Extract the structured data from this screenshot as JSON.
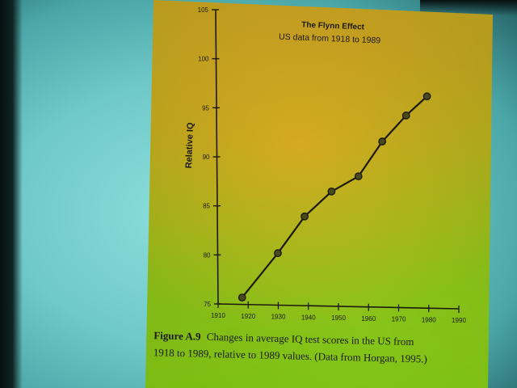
{
  "chart_data": {
    "type": "line",
    "title": "The Flynn Effect",
    "subtitle": "US data from 1918 to 1989",
    "xlabel": "",
    "ylabel": "Relative IQ",
    "xlim": [
      1910,
      1990
    ],
    "ylim": [
      75,
      105
    ],
    "x_ticks": [
      "1910",
      "1920",
      "1930",
      "1940",
      "1950",
      "1960",
      "1970",
      "1980",
      "1990"
    ],
    "y_ticks": [
      "75",
      "80",
      "85",
      "90",
      "95",
      "100",
      "105"
    ],
    "grid": false,
    "series": [
      {
        "x": [
          1918,
          1930,
          1939,
          1948,
          1957,
          1965,
          1973,
          1980
        ],
        "y": [
          75.7,
          80.3,
          84.1,
          86.7,
          88.3,
          91.9,
          94.6,
          96.6
        ]
      }
    ],
    "caption_label": "Figure A.9",
    "caption_line1": "Changes in average IQ test scores in the US from",
    "caption_line2": "1918 to 1989, relative to 1989 values. (Data from Horgan, 1995.)"
  },
  "colors": {
    "ink": "#1c1a10",
    "marker_fill": "#4a4a1c"
  }
}
